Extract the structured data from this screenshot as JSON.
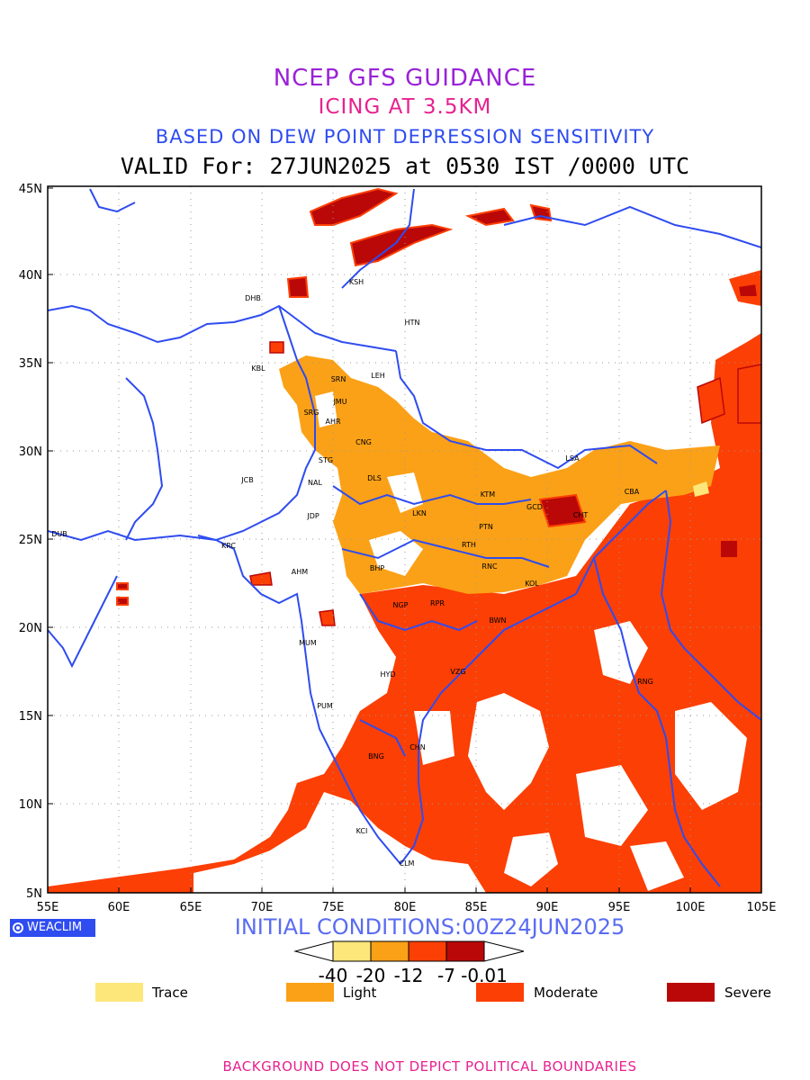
{
  "titles": {
    "line1": "NCEP GFS GUIDANCE",
    "line2": "ICING AT 3.5KM",
    "line3": "BASED ON DEW POINT DEPRESSION SENSITIVITY",
    "line4": "VALID For: 27JUN2025 at 0530 IST /0000 UTC"
  },
  "axes": {
    "lat_labels": [
      "45N",
      "40N",
      "35N",
      "30N",
      "25N",
      "20N",
      "15N",
      "10N",
      "5N"
    ],
    "lon_labels": [
      "55E",
      "60E",
      "65E",
      "70E",
      "75E",
      "80E",
      "85E",
      "90E",
      "95E",
      "100E",
      "105E"
    ]
  },
  "stations": [
    "KSH",
    "DHB",
    "HTN",
    "KBL",
    "SRN",
    "LEH",
    "JMU",
    "SRG",
    "AHR",
    "CNG",
    "STG",
    "LSA",
    "JCB",
    "NAL",
    "DLS",
    "KTM",
    "CBA",
    "JDP",
    "LKN",
    "GCD",
    "CHT",
    "DUB",
    "PTN",
    "KRC",
    "RTH",
    "AHM",
    "BHP",
    "RNC",
    "KOL",
    "NGP",
    "RPR",
    "BWN",
    "MUM",
    "HYD",
    "VZG",
    "RNG",
    "PUM",
    "CHN",
    "BNG",
    "KCI",
    "CLM"
  ],
  "badge": {
    "text": "WEACLIM",
    "icon": "globe-icon"
  },
  "initial_conditions": "INITIAL CONDITIONS:00Z24JUN2025",
  "colorbar": {
    "ticks": [
      "-40",
      "-20",
      "-12",
      "-7",
      "-0.01"
    ],
    "colors": [
      "#fde77a",
      "#fba117",
      "#fc3f04",
      "#ba0808"
    ]
  },
  "legend": [
    {
      "label": "Trace",
      "color": "#fde77a"
    },
    {
      "label": "Light",
      "color": "#fba117"
    },
    {
      "label": "Moderate",
      "color": "#fc3f04"
    },
    {
      "label": "Severe",
      "color": "#ba0808"
    }
  ],
  "footer": "BACKGROUND DOES NOT DEPICT POLITICAL BOUNDARIES"
}
